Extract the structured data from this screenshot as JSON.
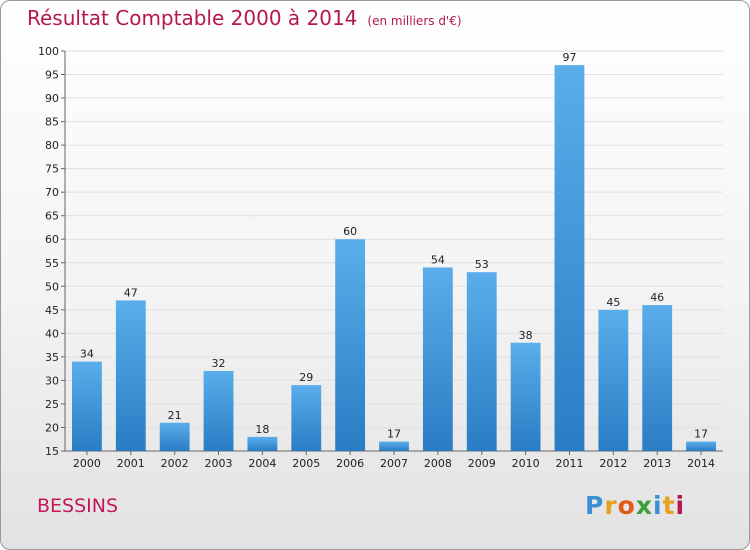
{
  "header": {
    "title": "Résultat Comptable 2000 à 2014",
    "unit": "(en milliers d'€)"
  },
  "footer": {
    "city": "BESSINS",
    "logo": {
      "letters": [
        "P",
        "r",
        "o",
        "x",
        "i",
        "t",
        "i"
      ],
      "colors": [
        "#3a8fd6",
        "#e8a020",
        "#e05a1a",
        "#3aa03a",
        "#3a8fd6",
        "#e8a020",
        "#b5174f"
      ]
    }
  },
  "colors": {
    "bar_top": "#5aaeea",
    "bar_bottom": "#2a7cc4",
    "grid": "#e0e0e0",
    "axis": "#666666"
  },
  "chart_data": {
    "type": "bar",
    "categories": [
      "2000",
      "2001",
      "2002",
      "2003",
      "2004",
      "2005",
      "2006",
      "2007",
      "2008",
      "2009",
      "2010",
      "2011",
      "2012",
      "2013",
      "2014"
    ],
    "values": [
      34,
      47,
      21,
      32,
      18,
      29,
      60,
      17,
      54,
      53,
      38,
      97,
      45,
      46,
      17
    ],
    "title": "Résultat Comptable 2000 à 2014",
    "ylim": [
      15,
      100
    ],
    "yticks": [
      15,
      20,
      25,
      30,
      35,
      40,
      45,
      50,
      55,
      60,
      65,
      70,
      75,
      80,
      85,
      90,
      95,
      100
    ],
    "grid": true,
    "legend": "none"
  }
}
